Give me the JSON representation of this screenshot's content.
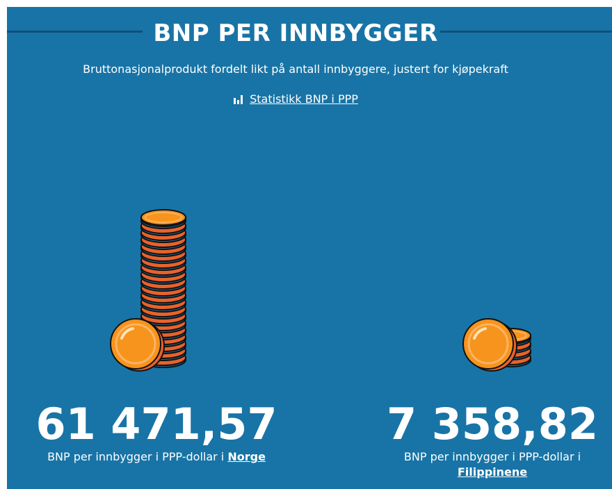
{
  "header": {
    "title": "BNP PER INNBYGGER",
    "subtitle": "Bruttonasjonalprodukt fordelt likt på antall innbyggere, justert for kjøpekraft",
    "link": "Statistikk BNP i PPP"
  },
  "countries": [
    {
      "value": "61 471,57",
      "label": "BNP per innbygger i PPP-dollar i",
      "name": "Norge"
    },
    {
      "value": "7 358,82",
      "label": "BNP per innbygger i PPP-dollar i",
      "name": "Filippinene"
    }
  ]
}
